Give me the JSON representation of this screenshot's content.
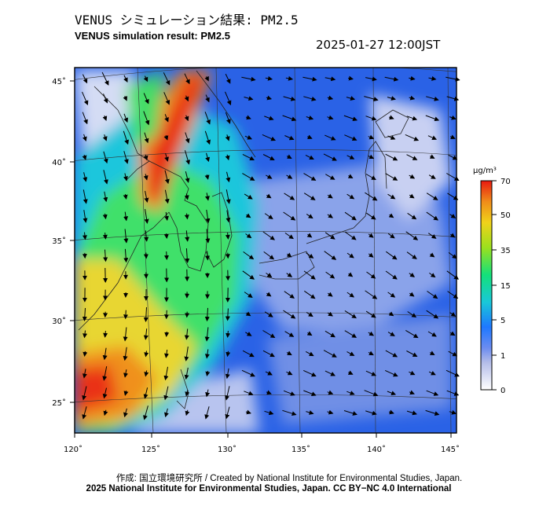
{
  "header": {
    "title_jp": "VENUS シミュレーション結果: PM2.5",
    "title_en": "VENUS simulation result: PM2.5",
    "timestamp": "2025-01-27 12:00JST"
  },
  "map": {
    "lon_ticks": [
      "120˚",
      "125˚",
      "130˚",
      "135˚",
      "140˚",
      "145˚"
    ],
    "lat_ticks": [
      "45˚",
      "40˚",
      "35˚",
      "30˚",
      "25˚"
    ]
  },
  "colorbar": {
    "unit": "μg/m³",
    "levels": [
      "70",
      "50",
      "35",
      "15",
      "5",
      "1",
      "0"
    ],
    "colors": [
      "#d8d8ee",
      "#6c8cf0",
      "#1e78ff",
      "#19c8d8",
      "#14e07a",
      "#7ae01e",
      "#f0d21a",
      "#f08c1a",
      "#f0281a"
    ]
  },
  "footer": {
    "credit_line": "作成: 国立環境研究所 / Created by National Institute for Environmental Studies, Japan.",
    "copyright_line": "2025 National Institute for Environmental Studies, Japan. CC BY−NC 4.0 International"
  }
}
